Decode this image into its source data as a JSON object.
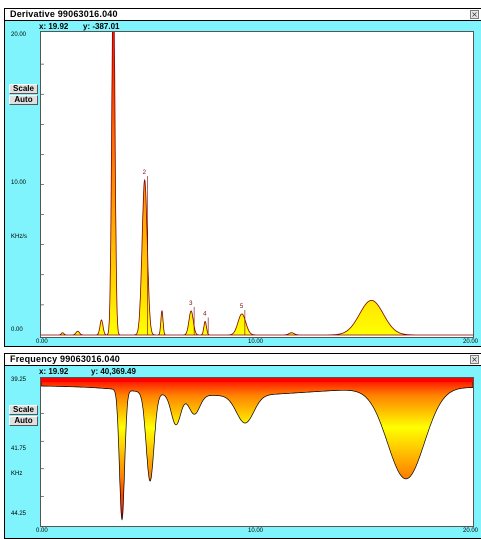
{
  "colors": {
    "panel_bg": "#80f4fc",
    "fill_top": "#ffff00",
    "fill_bottom": "#ff0000",
    "outline": "#800000"
  },
  "derivative": {
    "window_title": "Derivative   99063016.040",
    "close_icon": "close-icon",
    "readout_x": "x: 19.92",
    "readout_y": "y: -387.01",
    "scale_button": "Scale",
    "auto_button": "Auto",
    "y_ticks": {
      "top": "20.00",
      "mid": "10.00",
      "bottom": "0.00",
      "unit": "KHz/s"
    },
    "x_ticks": {
      "start": "0.00",
      "mid": "10.00",
      "end": "20.00"
    },
    "peak_labels": [
      "2",
      "3",
      "4",
      "5"
    ]
  },
  "frequency": {
    "window_title": "Frequency   99063016.040",
    "close_icon": "close-icon",
    "readout_x": "x: 19.92",
    "readout_y": "y: 40,369.49",
    "scale_button": "Scale",
    "auto_button": "Auto",
    "y_ticks": {
      "top": "39.25",
      "mid": "41.75",
      "unit": "KHz",
      "bottom": "44.25"
    },
    "x_ticks": {
      "start": "0.00",
      "mid": "10.00",
      "end": "20.00"
    }
  },
  "chart_data": [
    {
      "type": "area",
      "xlim": [
        0,
        20
      ],
      "ylim": [
        0,
        20
      ],
      "peaks": [
        {
          "x": 1.0,
          "height": 0.15
        },
        {
          "x": 1.7,
          "height": 0.25
        },
        {
          "x": 2.8,
          "height": 1.0
        },
        {
          "x": 3.35,
          "height": 24
        },
        {
          "x": 4.8,
          "height": 10.3
        },
        {
          "x": 5.6,
          "height": 1.6
        },
        {
          "x": 6.95,
          "height": 1.6
        },
        {
          "x": 7.6,
          "height": 0.9
        },
        {
          "x": 9.3,
          "height": 1.4
        },
        {
          "x": 11.6,
          "height": 0.15
        },
        {
          "x": 15.3,
          "height": 2.3
        }
      ]
    },
    {
      "type": "area",
      "xlim": [
        0,
        20
      ],
      "ylim_kHz": [
        39.25,
        44.25
      ],
      "dips": [
        {
          "x": 3.75,
          "depth_kHz": 4.7
        },
        {
          "x": 5.05,
          "depth_kHz": 3.2
        },
        {
          "x": 6.25,
          "depth_kHz": 1.1
        },
        {
          "x": 7.1,
          "depth_kHz": 0.7
        },
        {
          "x": 9.45,
          "depth_kHz": 1.0
        },
        {
          "x": 16.9,
          "depth_kHz": 3.3
        }
      ]
    }
  ]
}
